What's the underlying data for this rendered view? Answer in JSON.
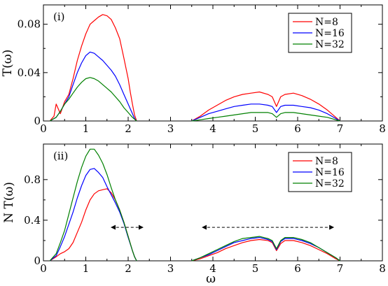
{
  "chart_data": [
    {
      "type": "line",
      "panel_label": "(i)",
      "xlabel": "",
      "ylabel": "T(ω)",
      "xlim": [
        0,
        8
      ],
      "ylim": [
        0,
        0.096
      ],
      "xticks": [
        "0",
        "1",
        "2",
        "3",
        "4",
        "5",
        "6",
        "7",
        "8"
      ],
      "yticks": [
        {
          "value": 0,
          "label": "0"
        },
        {
          "value": 0.04,
          "label": "0.04"
        },
        {
          "value": 0.08,
          "label": "0.08"
        }
      ],
      "legend_position": "top-right",
      "series": [
        {
          "name": "N=8",
          "color": "#ff0000",
          "x": [
            0.15,
            0.25,
            0.3,
            0.4,
            0.5,
            0.6,
            0.7,
            0.8,
            0.9,
            1.0,
            1.1,
            1.2,
            1.3,
            1.4,
            1.5,
            1.6,
            1.7,
            1.8,
            1.9,
            2.0,
            2.05,
            2.1,
            2.15,
            2.2
          ],
          "y": [
            0.0,
            0.004,
            0.014,
            0.006,
            0.016,
            0.022,
            0.035,
            0.05,
            0.062,
            0.072,
            0.08,
            0.083,
            0.086,
            0.088,
            0.087,
            0.084,
            0.077,
            0.068,
            0.052,
            0.035,
            0.024,
            0.014,
            0.005,
            0.0
          ]
        },
        {
          "name": "N=16",
          "color": "#0000ff",
          "x": [
            0.15,
            0.3,
            0.4,
            0.5,
            0.6,
            0.7,
            0.8,
            0.9,
            1.0,
            1.1,
            1.2,
            1.3,
            1.4,
            1.5,
            1.6,
            1.7,
            1.8,
            1.9,
            2.0,
            2.1,
            2.15,
            2.2
          ],
          "y": [
            0.0,
            0.003,
            0.008,
            0.014,
            0.02,
            0.03,
            0.04,
            0.048,
            0.054,
            0.057,
            0.056,
            0.053,
            0.05,
            0.046,
            0.042,
            0.037,
            0.03,
            0.022,
            0.014,
            0.006,
            0.002,
            0.0
          ]
        },
        {
          "name": "N=32",
          "color": "#008000",
          "x": [
            0.15,
            0.3,
            0.4,
            0.5,
            0.6,
            0.7,
            0.8,
            0.9,
            1.0,
            1.1,
            1.2,
            1.3,
            1.4,
            1.5,
            1.6,
            1.7,
            1.8,
            1.9,
            2.0,
            2.1,
            2.2
          ],
          "y": [
            0.0,
            0.003,
            0.008,
            0.014,
            0.018,
            0.023,
            0.028,
            0.032,
            0.035,
            0.036,
            0.035,
            0.033,
            0.03,
            0.027,
            0.024,
            0.02,
            0.016,
            0.011,
            0.007,
            0.003,
            0.0
          ]
        }
      ],
      "series_band2": [
        {
          "name": "N=8",
          "x": [
            3.5,
            3.7,
            3.9,
            4.1,
            4.3,
            4.5,
            4.7,
            4.9,
            5.1,
            5.3,
            5.4,
            5.5,
            5.6,
            5.7,
            5.9,
            6.1,
            6.3,
            6.5,
            6.7,
            6.9,
            7.0
          ],
          "y": [
            0.0,
            0.004,
            0.009,
            0.013,
            0.017,
            0.02,
            0.022,
            0.023,
            0.024,
            0.022,
            0.02,
            0.012,
            0.02,
            0.022,
            0.023,
            0.021,
            0.018,
            0.014,
            0.009,
            0.003,
            0.0
          ]
        },
        {
          "name": "N=16",
          "x": [
            3.5,
            3.7,
            3.9,
            4.1,
            4.3,
            4.5,
            4.7,
            4.9,
            5.1,
            5.3,
            5.4,
            5.5,
            5.6,
            5.7,
            5.9,
            6.1,
            6.3,
            6.5,
            6.7,
            6.9,
            7.0
          ],
          "y": [
            0.0,
            0.003,
            0.006,
            0.008,
            0.01,
            0.012,
            0.013,
            0.014,
            0.014,
            0.013,
            0.012,
            0.007,
            0.012,
            0.013,
            0.013,
            0.012,
            0.011,
            0.009,
            0.006,
            0.002,
            0.0
          ]
        },
        {
          "name": "N=32",
          "x": [
            3.5,
            3.7,
            3.9,
            4.1,
            4.3,
            4.5,
            4.7,
            4.9,
            5.1,
            5.3,
            5.4,
            5.5,
            5.6,
            5.7,
            5.9,
            6.1,
            6.3,
            6.5,
            6.7,
            6.9,
            7.0
          ],
          "y": [
            0.0,
            0.001,
            0.002,
            0.003,
            0.004,
            0.005,
            0.006,
            0.007,
            0.007,
            0.007,
            0.006,
            0.003,
            0.006,
            0.007,
            0.007,
            0.006,
            0.005,
            0.004,
            0.003,
            0.001,
            0.0
          ]
        }
      ]
    },
    {
      "type": "line",
      "panel_label": "(ii)",
      "xlabel": "ω",
      "ylabel": "N T(ω)",
      "xlim": [
        0,
        8
      ],
      "ylim": [
        0,
        1.15
      ],
      "xticks": [
        "0",
        "1",
        "2",
        "3",
        "4",
        "5",
        "6",
        "7",
        "8"
      ],
      "yticks": [
        {
          "value": 0,
          "label": "0"
        },
        {
          "value": 0.4,
          "label": "0.4"
        },
        {
          "value": 0.8,
          "label": "0.8"
        }
      ],
      "legend_position": "top-right",
      "arrows": [
        [
          1.6,
          2.35
        ],
        [
          3.75,
          6.85
        ]
      ],
      "series": [
        {
          "name": "N=8",
          "color": "#ff0000",
          "x": [
            0.15,
            0.3,
            0.4,
            0.5,
            0.6,
            0.7,
            0.8,
            0.9,
            1.0,
            1.1,
            1.2,
            1.3,
            1.4,
            1.5,
            1.6,
            1.7,
            1.8,
            1.9,
            2.0,
            2.1,
            2.15,
            2.2
          ],
          "y": [
            0.0,
            0.04,
            0.07,
            0.09,
            0.12,
            0.18,
            0.28,
            0.38,
            0.5,
            0.6,
            0.66,
            0.69,
            0.7,
            0.71,
            0.67,
            0.6,
            0.5,
            0.38,
            0.24,
            0.1,
            0.04,
            0.0
          ]
        },
        {
          "name": "N=16",
          "color": "#0000ff",
          "x": [
            0.15,
            0.3,
            0.4,
            0.5,
            0.6,
            0.7,
            0.8,
            0.9,
            1.0,
            1.1,
            1.2,
            1.3,
            1.4,
            1.5,
            1.6,
            1.7,
            1.8,
            1.9,
            2.0,
            2.1,
            2.15,
            2.2
          ],
          "y": [
            0.0,
            0.05,
            0.14,
            0.24,
            0.36,
            0.48,
            0.62,
            0.74,
            0.84,
            0.9,
            0.91,
            0.87,
            0.82,
            0.73,
            0.65,
            0.57,
            0.48,
            0.37,
            0.23,
            0.1,
            0.04,
            0.0
          ]
        },
        {
          "name": "N=32",
          "color": "#008000",
          "x": [
            0.15,
            0.3,
            0.4,
            0.5,
            0.6,
            0.7,
            0.8,
            0.9,
            1.0,
            1.1,
            1.2,
            1.3,
            1.4,
            1.5,
            1.6,
            1.7,
            1.8,
            1.9,
            2.0,
            2.1,
            2.15,
            2.2
          ],
          "y": [
            0.0,
            0.07,
            0.18,
            0.3,
            0.46,
            0.62,
            0.78,
            0.92,
            1.03,
            1.1,
            1.1,
            1.04,
            0.96,
            0.85,
            0.72,
            0.6,
            0.5,
            0.38,
            0.24,
            0.1,
            0.04,
            0.0
          ]
        }
      ],
      "series_band2": [
        {
          "name": "N=8",
          "x": [
            3.5,
            3.7,
            3.9,
            4.1,
            4.3,
            4.5,
            4.7,
            4.9,
            5.1,
            5.3,
            5.4,
            5.5,
            5.6,
            5.7,
            5.9,
            6.1,
            6.3,
            6.5,
            6.7,
            6.9,
            7.0
          ],
          "y": [
            0.0,
            0.02,
            0.05,
            0.08,
            0.12,
            0.15,
            0.18,
            0.2,
            0.21,
            0.2,
            0.18,
            0.1,
            0.17,
            0.2,
            0.2,
            0.18,
            0.15,
            0.11,
            0.07,
            0.02,
            0.0
          ]
        },
        {
          "name": "N=16",
          "x": [
            3.5,
            3.7,
            3.9,
            4.1,
            4.3,
            4.5,
            4.7,
            4.9,
            5.1,
            5.3,
            5.4,
            5.5,
            5.6,
            5.7,
            5.9,
            6.1,
            6.3,
            6.5,
            6.7,
            6.9,
            7.0
          ],
          "y": [
            0.0,
            0.03,
            0.06,
            0.1,
            0.14,
            0.18,
            0.2,
            0.22,
            0.23,
            0.21,
            0.19,
            0.11,
            0.19,
            0.22,
            0.22,
            0.2,
            0.17,
            0.13,
            0.08,
            0.03,
            0.0
          ]
        },
        {
          "name": "N=32",
          "x": [
            3.5,
            3.7,
            3.9,
            4.1,
            4.3,
            4.5,
            4.7,
            4.9,
            5.1,
            5.3,
            5.4,
            5.5,
            5.6,
            5.7,
            5.9,
            6.1,
            6.3,
            6.5,
            6.7,
            6.9,
            7.0
          ],
          "y": [
            0.0,
            0.03,
            0.07,
            0.11,
            0.15,
            0.19,
            0.22,
            0.23,
            0.24,
            0.22,
            0.2,
            0.12,
            0.2,
            0.23,
            0.23,
            0.21,
            0.18,
            0.13,
            0.08,
            0.03,
            0.0
          ]
        }
      ]
    }
  ]
}
